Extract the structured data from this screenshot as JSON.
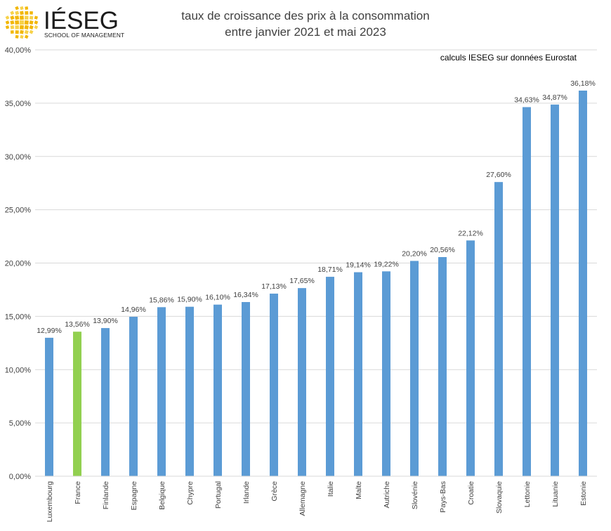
{
  "logo": {
    "word": "IÉSEG",
    "subtitle": "SCHOOL OF MANAGEMENT",
    "colors": {
      "primary": "#f2b705",
      "secondary": "#f7d24a",
      "text": "#1b1b1b"
    }
  },
  "chart_data": {
    "type": "bar",
    "title": [
      "taux de croissance des prix à la consommation",
      "entre janvier 2021 et mai 2023"
    ],
    "annotation": "calculs IESEG sur données Eurostat",
    "categories": [
      "Luxembourg",
      "France",
      "Finlande",
      "Espagne",
      "Belgique",
      "Chypre",
      "Portugal",
      "Irlande",
      "Grèce",
      "Allemagne",
      "Italie",
      "Malte",
      "Autriche",
      "Slovénie",
      "Pays-Bas",
      "Croatie",
      "Slovaquie",
      "Lettonie",
      "Lituanie",
      "Estonie"
    ],
    "values": [
      12.99,
      13.56,
      13.9,
      14.96,
      15.86,
      15.9,
      16.1,
      16.34,
      17.13,
      17.65,
      18.71,
      19.14,
      19.22,
      20.2,
      20.56,
      22.12,
      27.6,
      34.63,
      34.87,
      36.18
    ],
    "data_labels": [
      "12,99%",
      "13,56%",
      "13,90%",
      "14,96%",
      "15,86%",
      "15,90%",
      "16,10%",
      "16,34%",
      "17,13%",
      "17,65%",
      "18,71%",
      "19,14%",
      "19,22%",
      "20,20%",
      "20,56%",
      "22,12%",
      "27,60%",
      "34,63%",
      "34,87%",
      "36,18%"
    ],
    "ylim": [
      0,
      40
    ],
    "yticks": [
      0,
      5,
      10,
      15,
      20,
      25,
      30,
      35,
      40
    ],
    "ytick_labels": [
      "0,00%",
      "5,00%",
      "10,00%",
      "15,00%",
      "20,00%",
      "25,00%",
      "30,00%",
      "35,00%",
      "40,00%"
    ],
    "grid": true,
    "colors": {
      "bar": "#5b9bd5",
      "highlight": "#92d050",
      "grid": "#d9d9d9"
    },
    "highlight_category": "France"
  }
}
